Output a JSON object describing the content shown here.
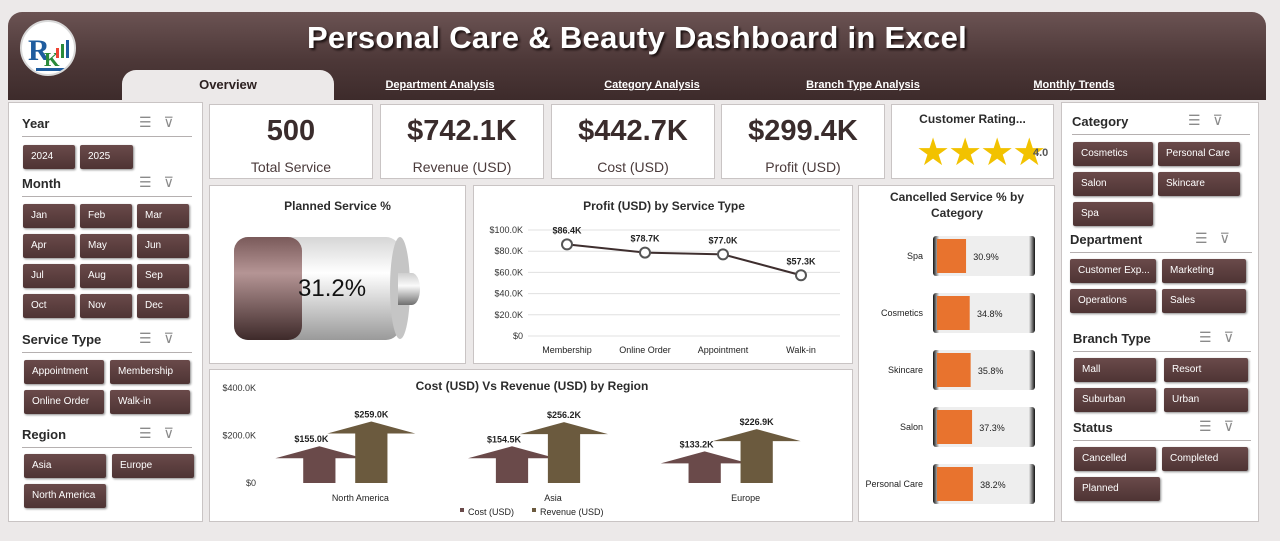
{
  "header": {
    "title": "Personal Care & Beauty Dashboard in Excel",
    "tabs": [
      "Overview",
      "Department Analysis",
      "Category Analysis",
      "Branch Type Analysis",
      "Monthly Trends"
    ]
  },
  "left_slicers": {
    "year": {
      "label": "Year",
      "items": [
        "2024",
        "2025"
      ]
    },
    "month": {
      "label": "Month",
      "items": [
        "Jan",
        "Feb",
        "Mar",
        "Apr",
        "May",
        "Jun",
        "Jul",
        "Aug",
        "Sep",
        "Oct",
        "Nov",
        "Dec"
      ]
    },
    "service_type": {
      "label": "Service Type",
      "items": [
        "Appointment",
        "Membership",
        "Online Order",
        "Walk-in"
      ]
    },
    "region": {
      "label": "Region",
      "items": [
        "Asia",
        "Europe",
        "North America"
      ]
    }
  },
  "right_slicers": {
    "category": {
      "label": "Category",
      "items": [
        "Cosmetics",
        "Personal Care",
        "Salon",
        "Skincare",
        "Spa"
      ]
    },
    "department": {
      "label": "Department",
      "items": [
        "Customer Exp...",
        "Marketing",
        "Operations",
        "Sales"
      ]
    },
    "branch_type": {
      "label": "Branch Type",
      "items": [
        "Mall",
        "Resort",
        "Suburban",
        "Urban"
      ]
    },
    "status": {
      "label": "Status",
      "items": [
        "Cancelled",
        "Completed",
        "Planned"
      ]
    }
  },
  "kpis": [
    {
      "value": "500",
      "label": "Total Service"
    },
    {
      "value": "$742.1K",
      "label": "Revenue (USD)"
    },
    {
      "value": "$442.7K",
      "label": "Cost (USD)"
    },
    {
      "value": "$299.4K",
      "label": "Profit (USD)"
    }
  ],
  "rating": {
    "title": "Customer Rating...",
    "value": "4.0",
    "stars": 4,
    "max": 5
  },
  "planned": {
    "title": "Planned Service %",
    "value": "31.2%",
    "fraction": 0.312
  },
  "colors": {
    "header": "#4d3838",
    "button": "#5a3f3f",
    "cost": "#6a4a4a",
    "revenue": "#6b5a3e",
    "bar_fill": "#e8732e",
    "star": "#f2c200"
  },
  "chart_data": [
    {
      "type": "line",
      "title": "Profit (USD) by Service Type",
      "categories": [
        "Membership",
        "Online Order",
        "Appointment",
        "Walk-in"
      ],
      "values": [
        86.4,
        78.7,
        77.0,
        57.3
      ],
      "labels": [
        "$86.4K",
        "$78.7K",
        "$77.0K",
        "$57.3K"
      ],
      "yticks": [
        "$100.0K",
        "$80.0K",
        "$60.0K",
        "$40.0K",
        "$20.0K",
        "$0"
      ],
      "ylim": [
        0,
        100
      ]
    },
    {
      "type": "bar",
      "title": "Cost (USD) Vs Revenue (USD) by Region",
      "categories": [
        "North America",
        "Asia",
        "Europe"
      ],
      "series": [
        {
          "name": "Cost (USD)",
          "values": [
            155.0,
            154.5,
            133.2
          ],
          "labels": [
            "$155.0K",
            "$154.5K",
            "$133.2K"
          ]
        },
        {
          "name": "Revenue (USD)",
          "values": [
            259.0,
            256.2,
            226.9
          ],
          "labels": [
            "$259.0K",
            "$256.2K",
            "$226.9K"
          ]
        }
      ],
      "yticks": [
        "$400.0K",
        "$200.0K",
        "$0"
      ],
      "ylim": [
        0,
        400
      ]
    },
    {
      "type": "bar",
      "title": "Cancelled Service % by Category",
      "categories": [
        "Spa",
        "Cosmetics",
        "Skincare",
        "Salon",
        "Personal Care"
      ],
      "values": [
        30.9,
        34.8,
        35.8,
        37.3,
        38.2
      ],
      "labels": [
        "30.9%",
        "34.8%",
        "35.8%",
        "37.3%",
        "38.2%"
      ]
    }
  ]
}
